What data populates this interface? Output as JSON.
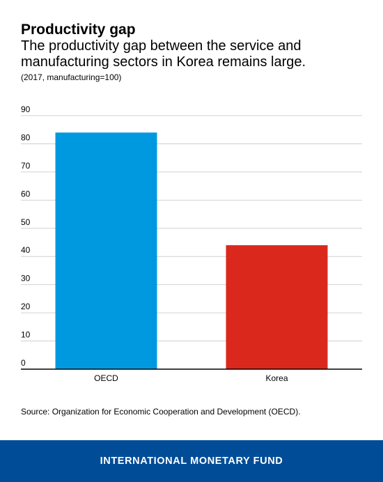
{
  "header": {
    "title": "Productivity gap",
    "subtitle": "The productivity gap between the service and manufacturing sectors in Korea remains large.",
    "note": "(2017, manufacturing=100)"
  },
  "chart_data": {
    "type": "bar",
    "categories": [
      "OECD",
      "Korea"
    ],
    "values": [
      84,
      44
    ],
    "colors": [
      "#0099E0",
      "#DA291C"
    ],
    "ylim": [
      0,
      90
    ],
    "yticks": [
      "0",
      "10",
      "20",
      "30",
      "40",
      "50",
      "60",
      "70",
      "80",
      "90"
    ],
    "grid": true,
    "xlabel": "",
    "ylabel": ""
  },
  "source": "Source: Organization for Economic Cooperation and Development (OECD).",
  "footer": {
    "org": "INTERNATIONAL MONETARY FUND",
    "background": "#004C97"
  }
}
